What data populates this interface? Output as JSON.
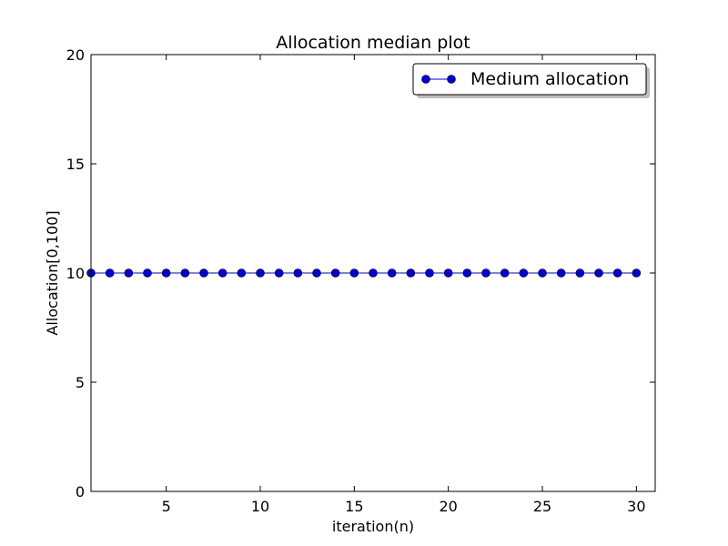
{
  "chart_data": {
    "type": "line",
    "title": "Allocation median plot",
    "xlabel": "iteration(n)",
    "ylabel": "Allocation[0,100]",
    "xlim": [
      1,
      31
    ],
    "ylim": [
      0,
      20
    ],
    "xticks": [
      5,
      10,
      15,
      20,
      25,
      30
    ],
    "yticks": [
      0,
      5,
      10,
      15,
      20
    ],
    "grid": false,
    "legend_position": "top-right",
    "series": [
      {
        "name": "Medium allocation",
        "color": "#0000cc",
        "marker": "circle",
        "x": [
          1,
          2,
          3,
          4,
          5,
          6,
          7,
          8,
          9,
          10,
          11,
          12,
          13,
          14,
          15,
          16,
          17,
          18,
          19,
          20,
          21,
          22,
          23,
          24,
          25,
          26,
          27,
          28,
          29,
          30
        ],
        "y": [
          10,
          10,
          10,
          10,
          10,
          10,
          10,
          10,
          10,
          10,
          10,
          10,
          10,
          10,
          10,
          10,
          10,
          10,
          10,
          10,
          10,
          10,
          10,
          10,
          10,
          10,
          10,
          10,
          10,
          10
        ]
      }
    ]
  }
}
